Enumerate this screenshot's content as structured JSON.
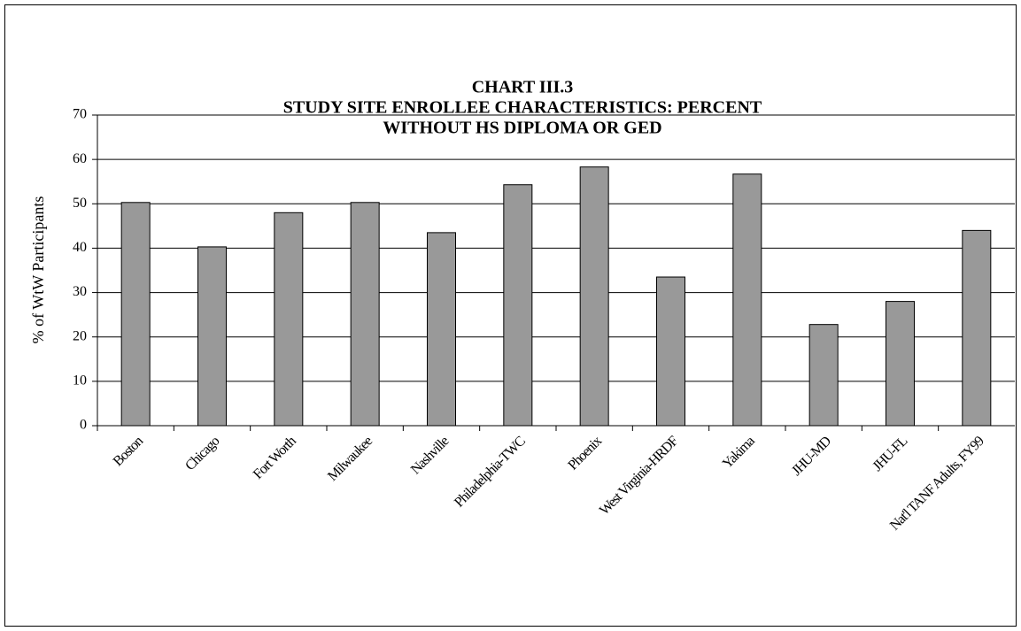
{
  "chart_data": {
    "type": "bar",
    "title": [
      "CHART III.3",
      "STUDY SITE ENROLLEE CHARACTERISTICS: PERCENT",
      "WITHOUT HS DIPLOMA OR GED"
    ],
    "y_label": "% of WtW Participants",
    "categories": [
      "Boston",
      "Chicago",
      "Fort Worth",
      "Milwaukee",
      "Nashville",
      "Philadelphia-TWC",
      "Phoenix",
      "West Virginia-HRDF",
      "Yakima",
      "JHU-MD",
      "JHU-FL",
      "Nat'l TANF Adults, FY99"
    ],
    "values": [
      50.3,
      40.3,
      48,
      50.3,
      43.5,
      54.3,
      58.3,
      33.5,
      56.7,
      22.8,
      28,
      44
    ],
    "color": "#999999",
    "ylim": [
      0,
      70
    ],
    "yticks": [
      0,
      10,
      20,
      30,
      40,
      50,
      60,
      70
    ],
    "grid": true
  }
}
